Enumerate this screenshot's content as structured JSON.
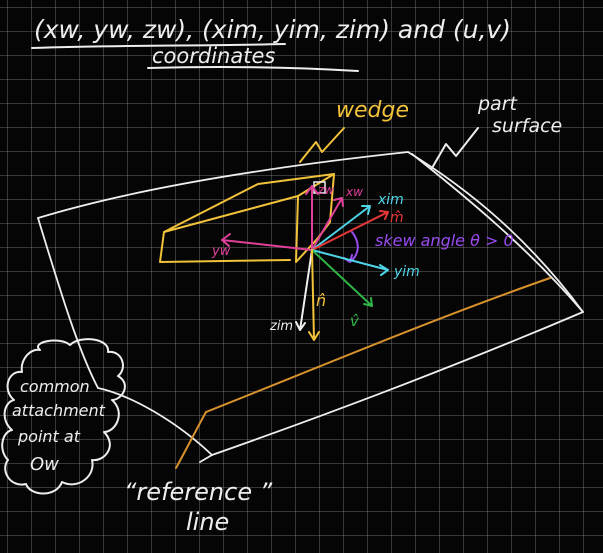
{
  "title": {
    "line1": "(xw, yw, zw), (xim, yim, zim) and (u,v)",
    "line2": "coordinates"
  },
  "labels": {
    "wedge": "wedge",
    "part": "part",
    "surface": "surface",
    "zw": "zw",
    "xw": "xw",
    "xim": "xim",
    "yw": "yw",
    "m_hat": "m̂",
    "skew": "skew angle θ > 0",
    "yim": "yim",
    "zim": "zim",
    "n_hat": "n̂",
    "v_hat": "v̂",
    "cloud_1": "common",
    "cloud_2": "attachment",
    "cloud_3": "point at",
    "cloud_4": "Ow",
    "reference": "“reference ”",
    "line": "line"
  },
  "colors": {
    "white": "#eeeeee",
    "yellow": "#f2c23a",
    "pink": "#e0409a",
    "red": "#e63838",
    "purple": "#9a4cf0",
    "cyan": "#4fd4e8",
    "green": "#2fb545",
    "orange": "#d8922c"
  }
}
